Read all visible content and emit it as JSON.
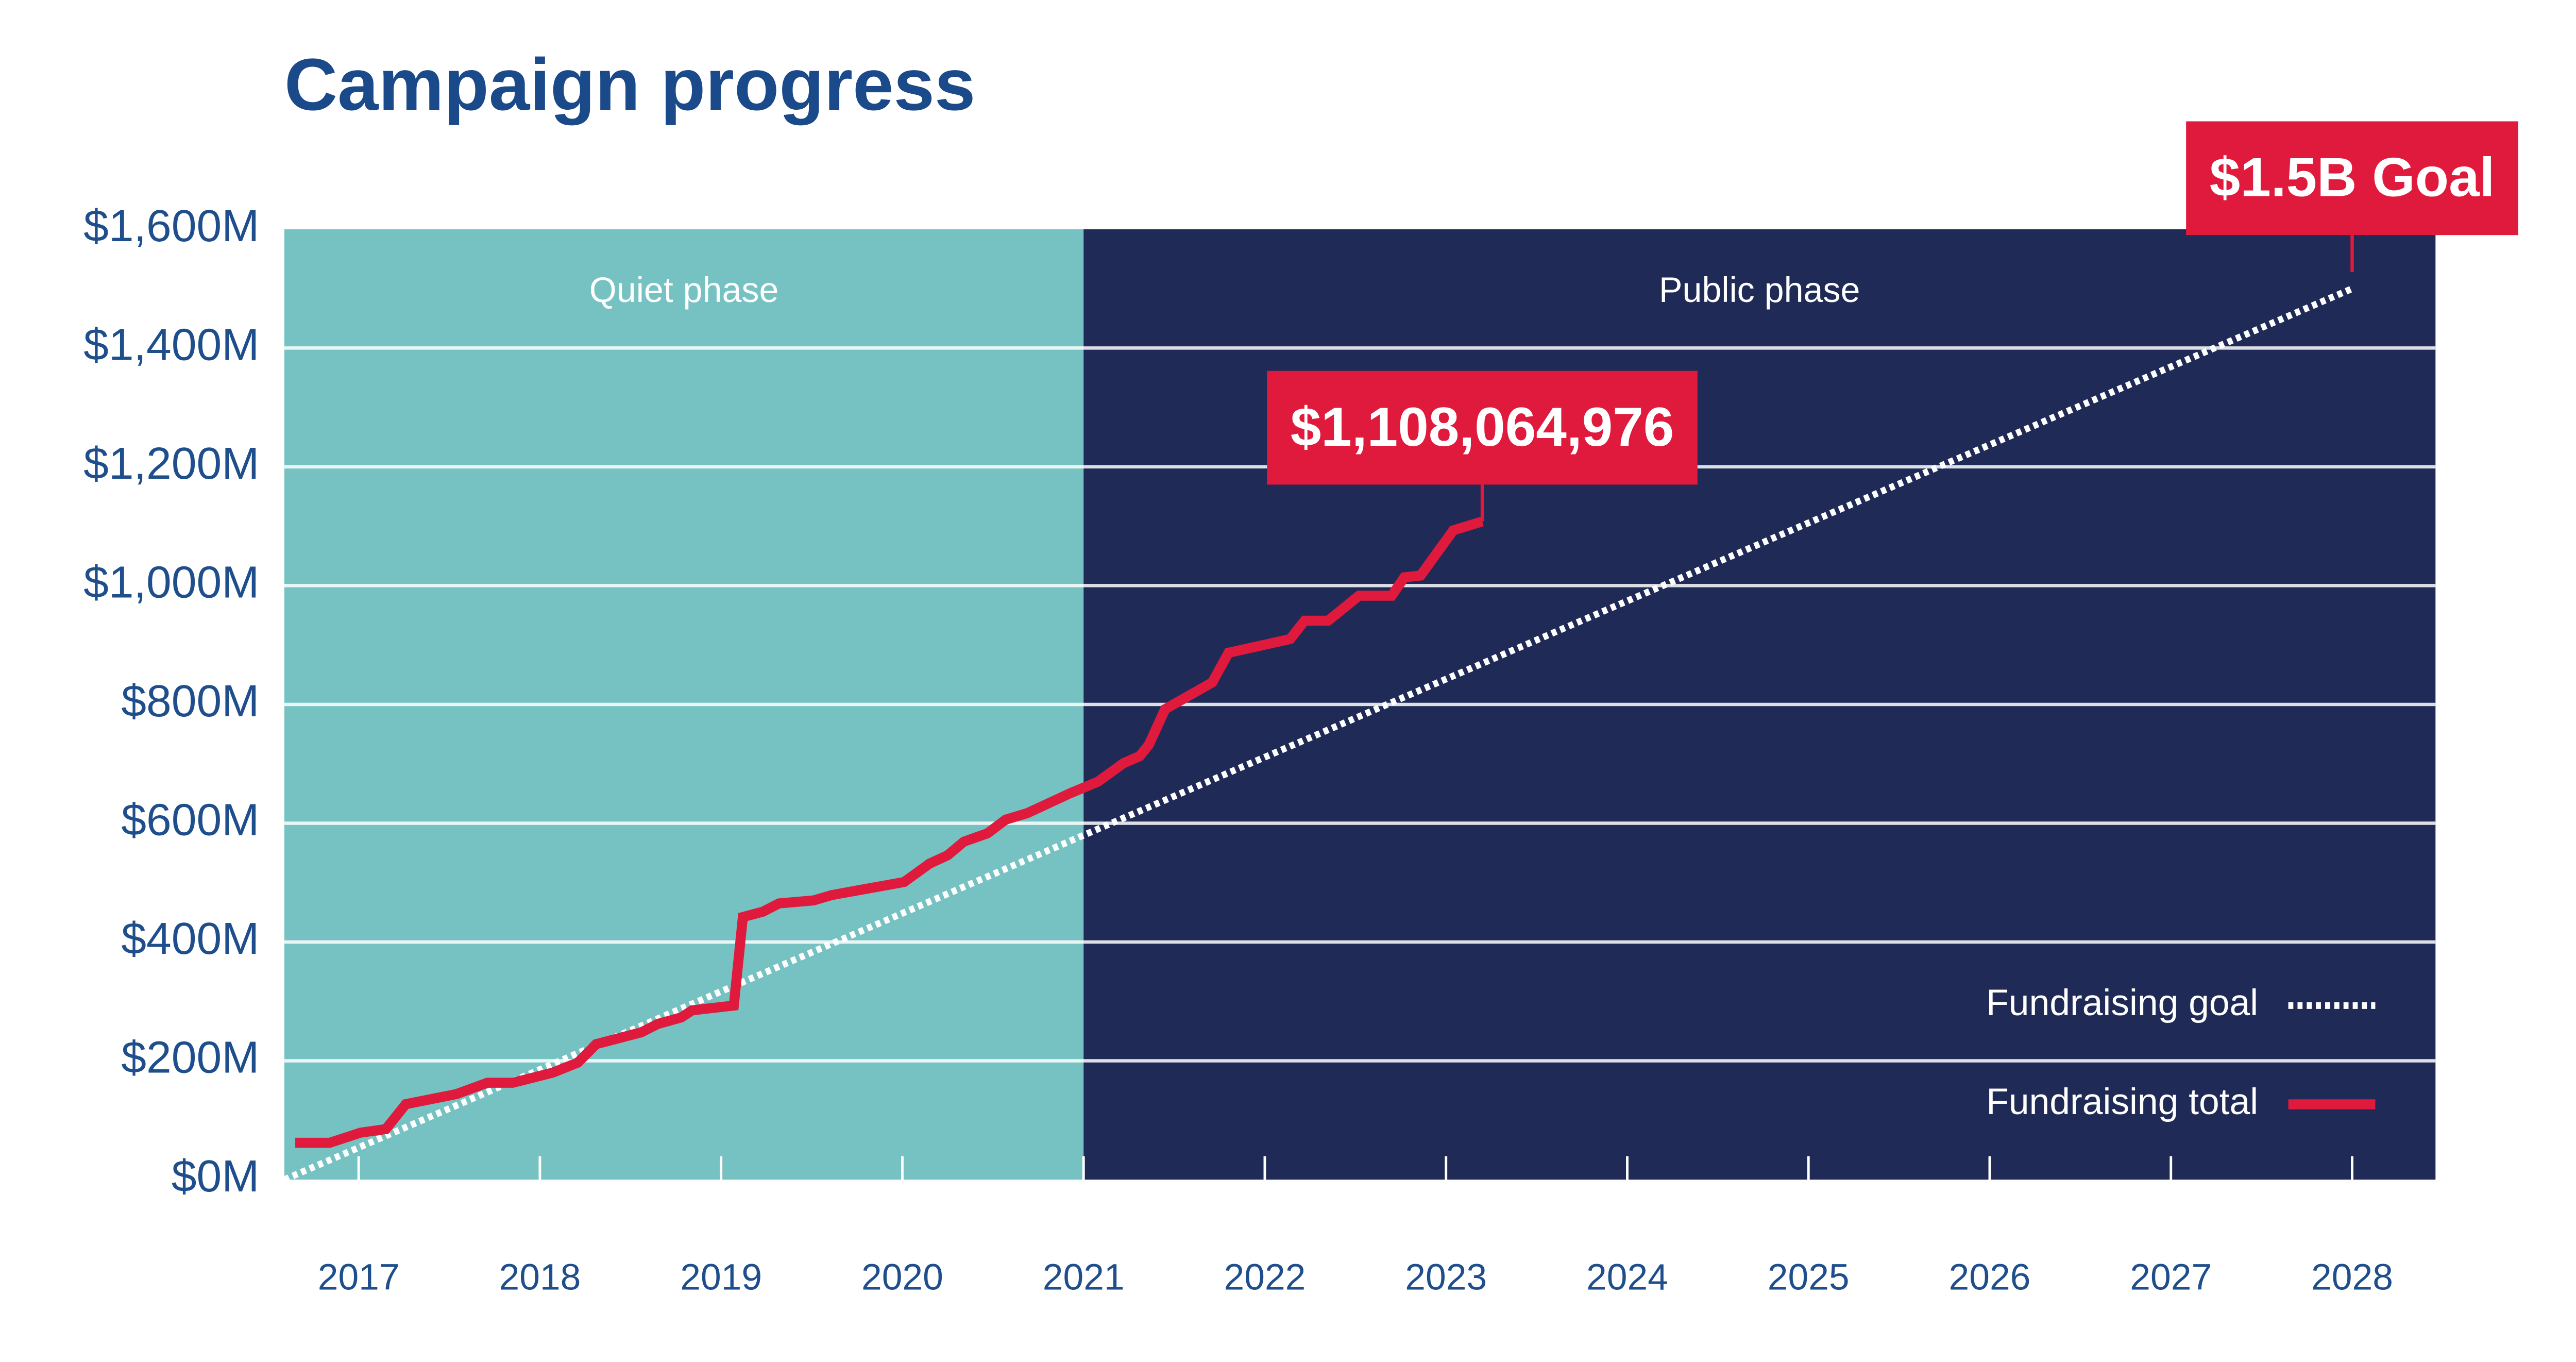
{
  "chart_data": {
    "type": "line",
    "title": "Campaign progress",
    "xlim": [
      2016.59,
      2028.46
    ],
    "xticks": [
      2017,
      2018,
      2019,
      2020,
      2021,
      2022,
      2023,
      2024,
      2025,
      2026,
      2027,
      2028
    ],
    "ylim": [
      0,
      1600
    ],
    "yticks": [
      {
        "value": 0,
        "label": "$0M"
      },
      {
        "value": 200,
        "label": "$200M"
      },
      {
        "value": 400,
        "label": "$400M"
      },
      {
        "value": 600,
        "label": "$600M"
      },
      {
        "value": 800,
        "label": "$800M"
      },
      {
        "value": 1000,
        "label": "$1,000M"
      },
      {
        "value": 1200,
        "label": "$1,200M"
      },
      {
        "value": 1400,
        "label": "$1,400M"
      },
      {
        "value": 1600,
        "label": "$1,600M"
      }
    ],
    "grid": true,
    "legend": "lower right",
    "phases": [
      {
        "name": "Quiet phase",
        "color": "#76c2c2",
        "end": 2021
      },
      {
        "name": "Public phase",
        "color": "#1f2a56"
      }
    ],
    "series": [
      {
        "name": "Fundraising goal",
        "color": "#ffffff",
        "style": "dotted",
        "x": [
          2016.59,
          2028.0
        ],
        "values": [
          0,
          1500
        ],
        "annotation": "$1.5B Goal"
      },
      {
        "name": "Fundraising total",
        "color": "#e01a3c",
        "style": "solid",
        "x": [
          2016.65,
          2016.84,
          2017.01,
          2017.15,
          2017.26,
          2017.54,
          2017.71,
          2017.85,
          2018.07,
          2018.21,
          2018.31,
          2018.56,
          2018.65,
          2018.78,
          2018.84,
          2019.07,
          2019.12,
          2019.23,
          2019.32,
          2019.51,
          2019.61,
          2020.01,
          2020.15,
          2020.25,
          2020.34,
          2020.47,
          2020.57,
          2020.69,
          2020.93,
          2021.08,
          2021.22,
          2021.31,
          2021.36,
          2021.45,
          2021.71,
          2021.8,
          2022.14,
          2022.22,
          2022.35,
          2022.52,
          2022.7,
          2022.77,
          2022.86,
          2022.94,
          2023.04,
          2023.2
        ],
        "values": [
          62,
          62,
          79,
          85,
          127,
          144,
          163,
          163,
          180,
          197,
          228,
          248,
          262,
          273,
          285,
          293,
          442,
          451,
          465,
          470,
          479,
          501,
          532,
          546,
          569,
          583,
          606,
          617,
          651,
          670,
          701,
          713,
          732,
          792,
          837,
          887,
          910,
          941,
          941,
          983,
          983,
          1014,
          1017,
          1051,
          1093,
          1108.064976
        ],
        "annotation": "$1,108,064,976"
      }
    ]
  }
}
